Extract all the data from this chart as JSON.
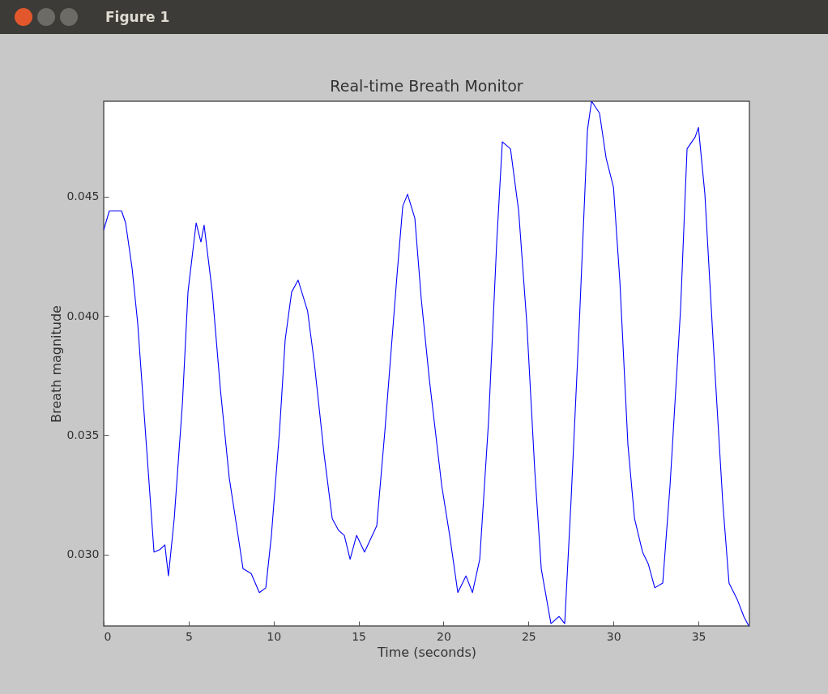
{
  "chart_data": {
    "type": "line",
    "title": "Real-time Breath Monitor",
    "xlabel": "Time (seconds)",
    "ylabel": "Breath magnitude",
    "annotations": [
      "Figure 1"
    ],
    "x": [
      0,
      0.33,
      1.05,
      1.29,
      1.67,
      2.0,
      2.34,
      2.72,
      2.96,
      3.3,
      3.6,
      3.81,
      4.15,
      4.63,
      4.96,
      5.44,
      5.72,
      5.91,
      6.39,
      6.87,
      7.39,
      7.82,
      8.2,
      8.68,
      9.16,
      9.54,
      9.87,
      10.35,
      10.68,
      11.06,
      11.44,
      12.0,
      12.4,
      12.97,
      13.45,
      13.83,
      14.16,
      14.5,
      14.88,
      15.35,
      16.07,
      16.55,
      17.26,
      17.6,
      17.88,
      18.31,
      18.69,
      19.17,
      19.89,
      20.36,
      20.84,
      21.32,
      21.7,
      22.13,
      22.65,
      23.13,
      23.46,
      23.94,
      24.42,
      24.9,
      25.37,
      25.75,
      26.32,
      26.8,
      27.13,
      27.5,
      27.99,
      28.47,
      28.71,
      29.18,
      29.57,
      30.0,
      30.38,
      30.85,
      31.24,
      31.71,
      32.05,
      32.43,
      32.9,
      33.33,
      33.95,
      34.33,
      34.81,
      35.0,
      35.38,
      35.86,
      36.43,
      36.8,
      37.29,
      37.67,
      37.96
    ],
    "series": [
      {
        "color": "#0000ff",
        "values": [
          0.0436,
          0.0444,
          0.0444,
          0.0439,
          0.042,
          0.0397,
          0.0363,
          0.0325,
          0.0301,
          0.0302,
          0.0304,
          0.0291,
          0.0315,
          0.0363,
          0.041,
          0.0439,
          0.0431,
          0.0438,
          0.041,
          0.0369,
          0.0332,
          0.0312,
          0.0294,
          0.0292,
          0.0284,
          0.0286,
          0.0308,
          0.0352,
          0.039,
          0.041,
          0.0415,
          0.0402,
          0.038,
          0.0342,
          0.0315,
          0.031,
          0.0308,
          0.0298,
          0.0308,
          0.0301,
          0.0312,
          0.0352,
          0.0417,
          0.0446,
          0.0451,
          0.0441,
          0.0407,
          0.0373,
          0.0329,
          0.0308,
          0.0284,
          0.0291,
          0.0284,
          0.0298,
          0.0356,
          0.0431,
          0.0473,
          0.047,
          0.0444,
          0.0397,
          0.0335,
          0.0294,
          0.0271,
          0.0274,
          0.0271,
          0.0322,
          0.0397,
          0.0478,
          0.049,
          0.0485,
          0.0466,
          0.0454,
          0.0414,
          0.0346,
          0.0315,
          0.0301,
          0.0296,
          0.0286,
          0.0288,
          0.0329,
          0.0403,
          0.047,
          0.0475,
          0.0479,
          0.0451,
          0.039,
          0.0322,
          0.0288,
          0.0281,
          0.0274,
          0.027
        ]
      }
    ],
    "xlim": [
      0,
      38
    ],
    "xticks": [
      0,
      5,
      10,
      15,
      20,
      25,
      30,
      35
    ],
    "ylim": [
      0.027,
      0.049
    ],
    "yticks": [
      {
        "value": 0.03,
        "label": "0.030"
      },
      {
        "value": 0.035,
        "label": "0.035"
      },
      {
        "value": 0.04,
        "label": "0.040"
      },
      {
        "value": 0.045,
        "label": "0.045"
      }
    ],
    "grid": false,
    "line_style": "solid",
    "marker": "none"
  }
}
